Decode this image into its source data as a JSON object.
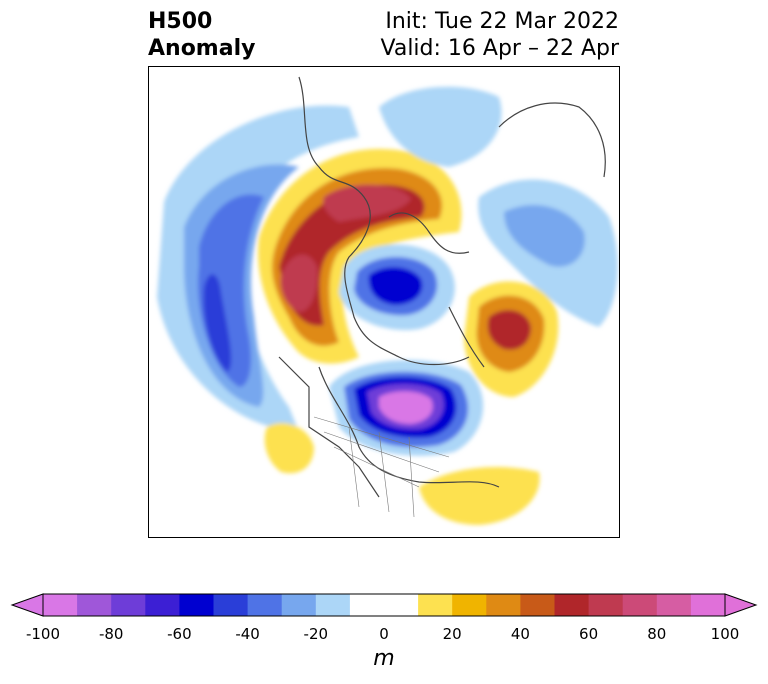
{
  "title": {
    "left_line1": "H500",
    "left_line2": "Anomaly",
    "right_line1": "Init: Tue 22 Mar 2022",
    "right_line2": "Valid: 16 Apr – 22 Apr"
  },
  "colorbar": {
    "unit_label": "m",
    "ticks": [
      "-100",
      "-80",
      "-60",
      "-40",
      "-20",
      "0",
      "20",
      "40",
      "60",
      "80",
      "100"
    ],
    "tick_values": [
      -100,
      -80,
      -60,
      -40,
      -20,
      0,
      20,
      40,
      60,
      80,
      100
    ],
    "colors": [
      "#d977e6",
      "#9f57d9",
      "#6e3dd8",
      "#3c1fd4",
      "#0000d0",
      "#2a3ed8",
      "#4f73e6",
      "#77a7ee",
      "#acd6f7",
      "#ffffff",
      "#ffffff",
      "#fde150",
      "#f0b400",
      "#df8a14",
      "#c85a18",
      "#b0262a",
      "#bf3a50",
      "#cc4a78",
      "#d65da3",
      "#e070d9"
    ]
  },
  "colors": {
    "neg_light": "#acd6f7",
    "neg_mid": "#4f73e6",
    "neg_deep": "#0000d0",
    "neg_max": "#d977e6",
    "pos_light": "#fde150",
    "pos_mid": "#df8a14",
    "pos_deep": "#b0262a",
    "pos_max": "#bf3a50",
    "coastline": "#444444"
  },
  "map": {
    "projection": "north-polar-stereographic",
    "field": "500 hPa geopotential height anomaly"
  }
}
